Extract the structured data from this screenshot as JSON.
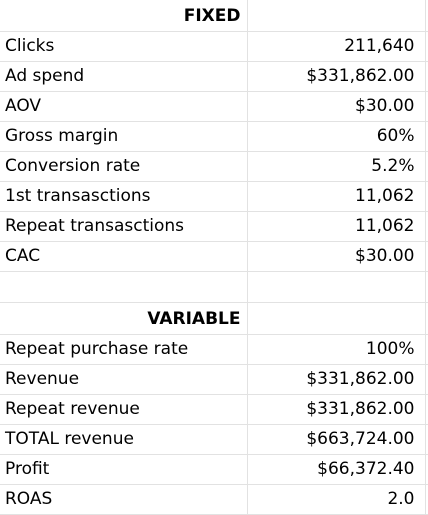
{
  "fixed": {
    "heading": "FIXED",
    "rows": [
      {
        "label": "Clicks",
        "value": "211,640"
      },
      {
        "label": "Ad spend",
        "value": "$331,862.00"
      },
      {
        "label": "AOV",
        "value": "$30.00"
      },
      {
        "label": "Gross margin",
        "value": "60%"
      },
      {
        "label": "Conversion rate",
        "value": "5.2%"
      },
      {
        "label": "1st transasctions",
        "value": "11,062"
      },
      {
        "label": "Repeat transasctions",
        "value": "11,062"
      },
      {
        "label": "CAC",
        "value": "$30.00"
      }
    ]
  },
  "variable": {
    "heading": "VARIABLE",
    "rows": [
      {
        "label": "Repeat purchase rate",
        "value": "100%"
      },
      {
        "label": "Revenue",
        "value": "$331,862.00"
      },
      {
        "label": "Repeat revenue",
        "value": "$331,862.00"
      },
      {
        "label": "TOTAL revenue",
        "value": "$663,724.00"
      },
      {
        "label": "Profit",
        "value": "$66,372.40"
      },
      {
        "label": "ROAS",
        "value": "2.0"
      }
    ]
  }
}
